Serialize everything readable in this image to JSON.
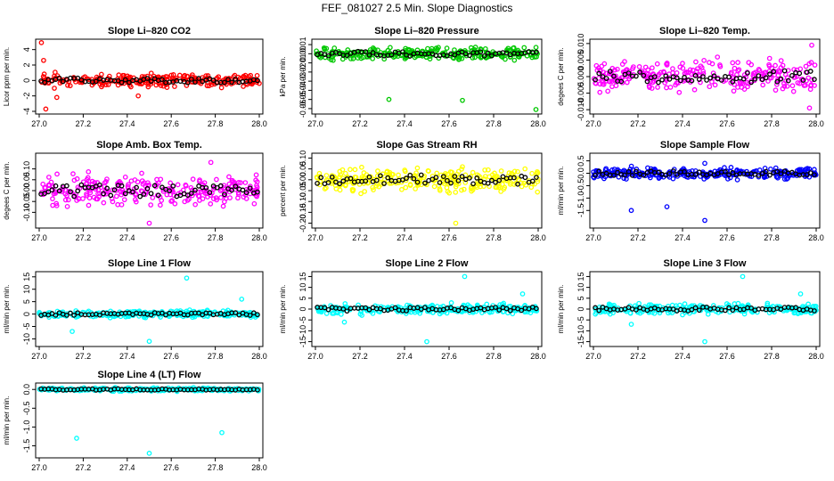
{
  "figure_title": "FEF_081027  2.5 Min. Slope Diagnostics",
  "colors": {
    "co2": "#ff0000",
    "pressure": "#00c800",
    "temp": "#ff00ff",
    "rh": "#ffff00",
    "sample_flow": "#0000ff",
    "line_flow": "#00ffff",
    "highlight": "#000000"
  },
  "chart_data": [
    {
      "id": "co2",
      "type": "scatter",
      "title": "Slope Li–820 CO2",
      "ylabel": "Licor ppm per min.",
      "xlim": [
        27.0,
        28.0
      ],
      "ylim": [
        -4,
        5
      ],
      "xticks": [
        27.0,
        27.2,
        27.4,
        27.6,
        27.8,
        28.0
      ],
      "yticks": [
        -4,
        -2,
        0,
        2,
        4
      ],
      "color": "#ff0000",
      "spread": 0.7,
      "seed": 11,
      "outliers": [
        {
          "x": 27.01,
          "y": 4.9
        },
        {
          "x": 27.02,
          "y": 2.6
        },
        {
          "x": 27.03,
          "y": -3.7
        },
        {
          "x": 27.08,
          "y": -2.2
        },
        {
          "x": 27.45,
          "y": -2.0
        }
      ]
    },
    {
      "id": "pressure",
      "type": "scatter",
      "title": "Slope Li–820 Pressure",
      "ylabel": "kPa per min.",
      "xlim": [
        27.0,
        28.0
      ],
      "ylim": [
        -0.063,
        0.013
      ],
      "xticks": [
        27.0,
        27.2,
        27.4,
        27.6,
        27.8,
        28.0
      ],
      "yticks": [
        -0.06,
        -0.05,
        -0.04,
        -0.03,
        -0.02,
        -0.01,
        0.0,
        0.01
      ],
      "color": "#00c800",
      "spread": 0.006,
      "seed": 23,
      "outliers": [
        {
          "x": 27.33,
          "y": -0.05
        },
        {
          "x": 27.66,
          "y": -0.051
        },
        {
          "x": 27.99,
          "y": -0.061
        }
      ]
    },
    {
      "id": "licor_temp",
      "type": "scatter",
      "title": "Slope Li–820 Temp.",
      "ylabel": "degees C per min.",
      "xlim": [
        27.0,
        28.0
      ],
      "ylim": [
        -0.0105,
        0.0105
      ],
      "xticks": [
        27.0,
        27.2,
        27.4,
        27.6,
        27.8,
        28.0
      ],
      "yticks": [
        -0.01,
        -0.005,
        0.0,
        0.005,
        0.01
      ],
      "color": "#ff00ff",
      "spread": 0.004,
      "seed": 37,
      "outliers": [
        {
          "x": 27.98,
          "y": 0.0095
        },
        {
          "x": 27.97,
          "y": -0.0095
        }
      ]
    },
    {
      "id": "box_temp",
      "type": "scatter",
      "title": "Slope Amb. Box Temp.",
      "ylabel": "degees C per min.",
      "xlim": [
        27.0,
        28.0
      ],
      "ylim": [
        -0.16,
        0.16
      ],
      "xticks": [
        27.0,
        27.2,
        27.4,
        27.6,
        27.8,
        28.0
      ],
      "yticks": [
        -0.1,
        -0.05,
        0.0,
        0.05,
        0.1
      ],
      "color": "#ff00ff",
      "spread": 0.06,
      "seed": 41,
      "outliers": [
        {
          "x": 27.5,
          "y": -0.15
        },
        {
          "x": 27.78,
          "y": 0.13
        }
      ]
    },
    {
      "id": "rh",
      "type": "scatter",
      "title": "Slope Gas Stream RH",
      "ylabel": "percent per min.",
      "xlim": [
        27.0,
        28.0
      ],
      "ylim": [
        -0.21,
        0.11
      ],
      "xticks": [
        27.0,
        27.2,
        27.4,
        27.6,
        27.8,
        28.0
      ],
      "yticks": [
        -0.2,
        -0.15,
        -0.1,
        -0.05,
        0.0,
        0.05,
        0.1
      ],
      "color": "#ffff00",
      "spread": 0.05,
      "seed": 53,
      "outliers": [
        {
          "x": 27.63,
          "y": -0.2
        },
        {
          "x": 27.66,
          "y": 0.06
        }
      ]
    },
    {
      "id": "sample_flow",
      "type": "scatter",
      "title": "Slope Sample Flow",
      "ylabel": "ml/min per min.",
      "xlim": [
        27.0,
        28.0
      ],
      "ylim": [
        -2.1,
        0.7
      ],
      "xticks": [
        27.0,
        27.2,
        27.4,
        27.6,
        27.8,
        28.0
      ],
      "yticks": [
        -1.5,
        -1.0,
        -0.5,
        0.0,
        0.5
      ],
      "color": "#0000ff",
      "spread": 0.2,
      "seed": 67,
      "outliers": [
        {
          "x": 27.17,
          "y": -1.5
        },
        {
          "x": 27.33,
          "y": -1.35
        },
        {
          "x": 27.5,
          "y": -1.9
        },
        {
          "x": 27.5,
          "y": 0.4
        }
      ]
    },
    {
      "id": "line1",
      "type": "scatter",
      "title": "Slope Line 1 Flow",
      "ylabel": "ml/min per min.",
      "xlim": [
        27.0,
        28.0
      ],
      "ylim": [
        -12,
        16
      ],
      "xticks": [
        27.0,
        27.2,
        27.4,
        27.6,
        27.8,
        28.0
      ],
      "yticks": [
        -10,
        -5,
        0,
        5,
        10,
        15
      ],
      "color": "#00ffff",
      "spread": 1.2,
      "seed": 71,
      "outliers": [
        {
          "x": 27.5,
          "y": -11
        },
        {
          "x": 27.67,
          "y": 14.5
        },
        {
          "x": 27.15,
          "y": -7
        },
        {
          "x": 27.92,
          "y": 6
        }
      ]
    },
    {
      "id": "line2",
      "type": "scatter",
      "title": "Slope Line 2 Flow",
      "ylabel": "ml/min per min.",
      "xlim": [
        27.0,
        28.0
      ],
      "ylim": [
        -16,
        16
      ],
      "xticks": [
        27.0,
        27.2,
        27.4,
        27.6,
        27.8,
        28.0
      ],
      "yticks": [
        -15,
        -10,
        -5,
        0,
        5,
        10,
        15
      ],
      "color": "#00ffff",
      "spread": 2,
      "seed": 83,
      "outliers": [
        {
          "x": 27.5,
          "y": -15
        },
        {
          "x": 27.67,
          "y": 15
        },
        {
          "x": 27.13,
          "y": -6
        },
        {
          "x": 27.93,
          "y": 7
        }
      ]
    },
    {
      "id": "line3",
      "type": "scatter",
      "title": "Slope Line 3 Flow",
      "ylabel": "ml/min per min.",
      "xlim": [
        27.0,
        28.0
      ],
      "ylim": [
        -16,
        16
      ],
      "xticks": [
        27.0,
        27.2,
        27.4,
        27.6,
        27.8,
        28.0
      ],
      "yticks": [
        -15,
        -10,
        -5,
        0,
        5,
        10,
        15
      ],
      "color": "#00ffff",
      "spread": 2,
      "seed": 97,
      "outliers": [
        {
          "x": 27.5,
          "y": -15
        },
        {
          "x": 27.67,
          "y": 15
        },
        {
          "x": 27.17,
          "y": -7
        },
        {
          "x": 27.93,
          "y": 7
        }
      ]
    },
    {
      "id": "line4",
      "type": "scatter",
      "title": "Slope Line 4 (LT) Flow",
      "ylabel": "ml/min per min.",
      "xlim": [
        27.0,
        28.0
      ],
      "ylim": [
        -1.75,
        0.1
      ],
      "xticks": [
        27.0,
        27.2,
        27.4,
        27.6,
        27.8,
        28.0
      ],
      "yticks": [
        -1.5,
        -1.0,
        -0.5,
        0.0
      ],
      "color": "#00ffff",
      "spread": 0.04,
      "seed": 101,
      "outliers": [
        {
          "x": 27.17,
          "y": -1.3
        },
        {
          "x": 27.5,
          "y": -1.7
        },
        {
          "x": 27.83,
          "y": -1.15
        }
      ]
    }
  ]
}
